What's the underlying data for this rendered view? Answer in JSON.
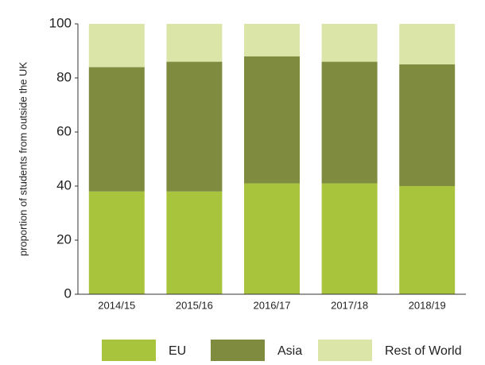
{
  "chart_data": {
    "type": "stacked_bar",
    "y_label": "proportion of students from outside the UK",
    "categories": [
      "2014/15",
      "2015/16",
      "2016/17",
      "2017/18",
      "2018/19"
    ],
    "series": [
      {
        "name": "EU",
        "color": "#a8c43c",
        "values": [
          38,
          38,
          41,
          41,
          40
        ]
      },
      {
        "name": "Asia",
        "color": "#7f8c3f",
        "values": [
          46,
          48,
          47,
          45,
          45
        ]
      },
      {
        "name": "Rest of World",
        "color": "#dce5a8",
        "values": [
          16,
          14,
          12,
          14,
          15
        ]
      }
    ],
    "ylim": [
      0,
      100
    ],
    "yticks": [
      0,
      20,
      40,
      60,
      80,
      100
    ],
    "legend": "bottom"
  }
}
